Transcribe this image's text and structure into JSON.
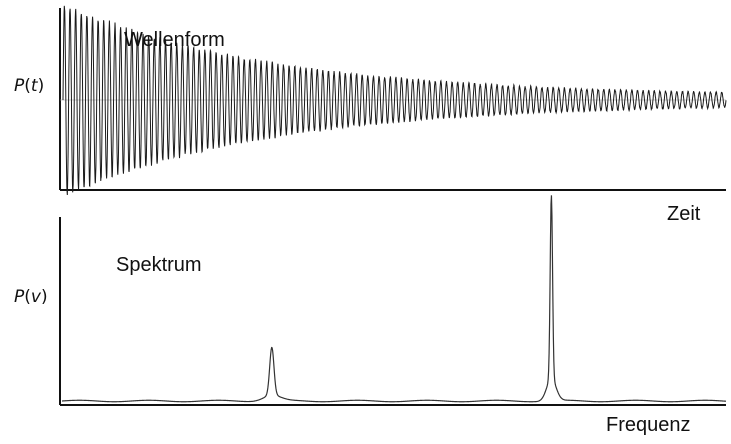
{
  "chart_data": [
    {
      "type": "line",
      "title": "Wellenform",
      "xlabel": "Zeit",
      "ylabel": "P(t)",
      "y_symbol": "P",
      "y_var": "t",
      "grid": false,
      "series": [
        {
          "kind": "damped-oscillation",
          "amplitude": 1.0,
          "decay": 3.2,
          "cycles": 118,
          "noise": 0.05
        }
      ]
    },
    {
      "type": "line",
      "title": "Spektrum",
      "xlabel": "Frequenz",
      "ylabel": "P(v)",
      "y_symbol": "P",
      "y_var": "v",
      "grid": false,
      "xlim": [
        0,
        1
      ],
      "ylim": [
        0,
        1
      ],
      "series": [
        {
          "kind": "peaks",
          "peaks": [
            {
              "x": 0.316,
              "height": 0.26
            },
            {
              "x": 0.737,
              "height": 1.0
            }
          ]
        }
      ]
    }
  ]
}
